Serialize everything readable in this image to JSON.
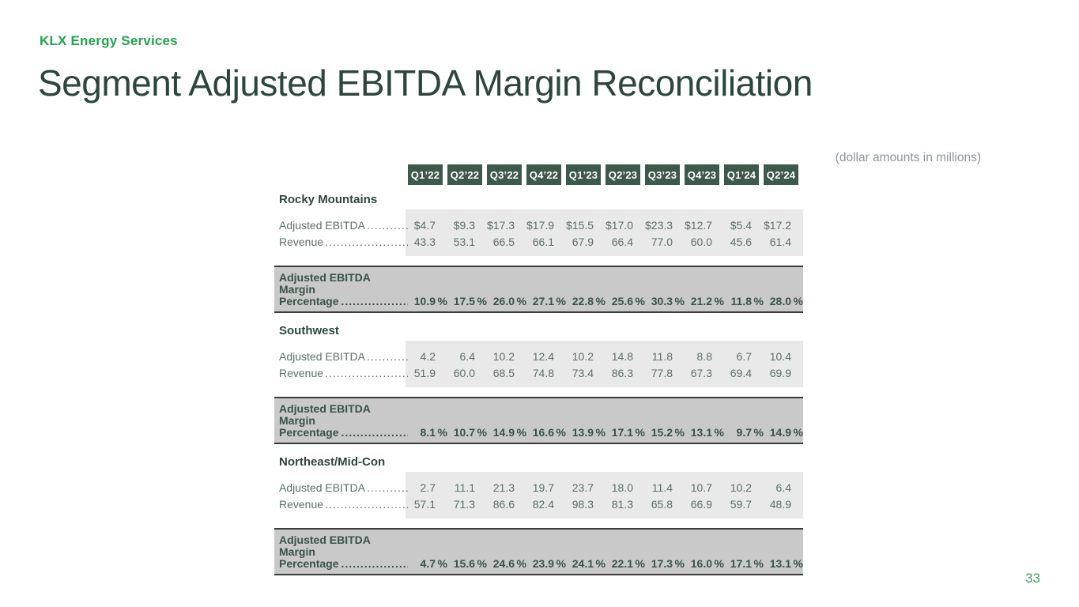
{
  "brand": "KLX Energy Services",
  "page_title": "Segment Adjusted EBITDA Margin Reconciliation",
  "note": "(dollar amounts in millions)",
  "page_number": "33",
  "colors": {
    "accent_green": "#22a34f",
    "title_green": "#2d463d",
    "header_chip_bg": "#3c594c",
    "light_band": "#e9e9e9",
    "dark_band": "#c9c9c9",
    "band_rule": "#3a3a3a"
  },
  "table": {
    "quarters": [
      "Q1’22",
      "Q2’22",
      "Q3’22",
      "Q4’22",
      "Q1’23",
      "Q2’23",
      "Q3’23",
      "Q4’23",
      "Q1’24",
      "Q2’24"
    ],
    "row_labels": {
      "ebitda": "Adjusted EBITDA",
      "revenue": "Revenue",
      "margin_line1": "Adjusted EBITDA Margin",
      "margin_line2": "Percentage"
    },
    "percent_sign": "%",
    "segments": [
      {
        "name": "Rocky Mountains",
        "adjusted_ebitda": [
          "$4.7",
          "$9.3",
          "$17.3",
          "$17.9",
          "$15.5",
          "$17.0",
          "$23.3",
          "$12.7",
          "$5.4",
          "$17.2"
        ],
        "revenue": [
          "43.3",
          "53.1",
          "66.5",
          "66.1",
          "67.9",
          "66.4",
          "77.0",
          "60.0",
          "45.6",
          "61.4"
        ],
        "margin_pct": [
          "10.9",
          "17.5",
          "26.0",
          "27.1",
          "22.8",
          "25.6",
          "30.3",
          "21.2",
          "11.8",
          "28.0"
        ]
      },
      {
        "name": "Southwest",
        "adjusted_ebitda": [
          "4.2",
          "6.4",
          "10.2",
          "12.4",
          "10.2",
          "14.8",
          "11.8",
          "8.8",
          "6.7",
          "10.4"
        ],
        "revenue": [
          "51.9",
          "60.0",
          "68.5",
          "74.8",
          "73.4",
          "86.3",
          "77.8",
          "67.3",
          "69.4",
          "69.9"
        ],
        "margin_pct": [
          "8.1",
          "10.7",
          "14.9",
          "16.6",
          "13.9",
          "17.1",
          "15.2",
          "13.1",
          "9.7",
          "14.9"
        ]
      },
      {
        "name": "Northeast/Mid-Con",
        "adjusted_ebitda": [
          "2.7",
          "11.1",
          "21.3",
          "19.7",
          "23.7",
          "18.0",
          "11.4",
          "10.7",
          "10.2",
          "6.4"
        ],
        "revenue": [
          "57.1",
          "71.3",
          "86.6",
          "82.4",
          "98.3",
          "81.3",
          "65.8",
          "66.9",
          "59.7",
          "48.9"
        ],
        "margin_pct": [
          "4.7",
          "15.6",
          "24.6",
          "23.9",
          "24.1",
          "22.1",
          "17.3",
          "16.0",
          "17.1",
          "13.1"
        ]
      }
    ]
  }
}
